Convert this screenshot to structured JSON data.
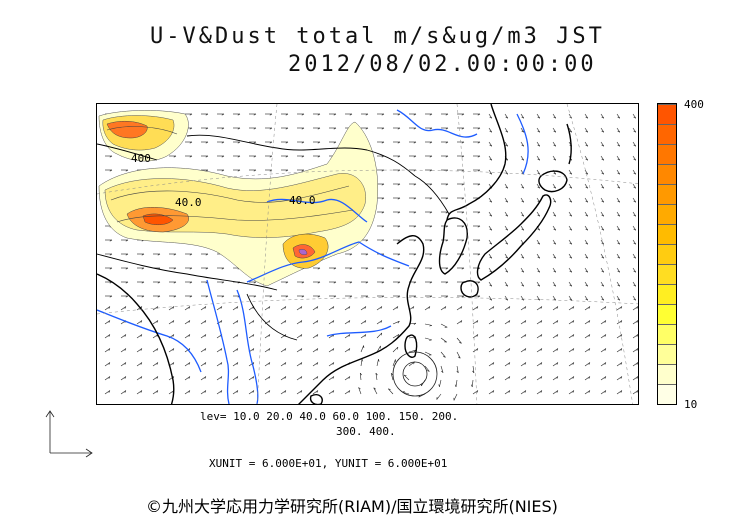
{
  "title": {
    "line1": "U-V&Dust total m/s&ug/m3 JST",
    "line2": "2012/08/02.00:00:00"
  },
  "contour_labels": [
    {
      "id": "label-a",
      "text": "400"
    },
    {
      "id": "label-b",
      "text": "40.0"
    },
    {
      "id": "label-c",
      "text": "40.0"
    }
  ],
  "colorbar": {
    "max_label": "400",
    "min_label": "10",
    "colors": [
      "#ffffe6",
      "#ffffcc",
      "#ffff99",
      "#ffff66",
      "#ffff33",
      "#ffee22",
      "#ffdd22",
      "#ffcc11",
      "#ffbb00",
      "#ffaa00",
      "#ff9900",
      "#ff8800",
      "#ff7700",
      "#ff6600",
      "#ff5500"
    ]
  },
  "levels": {
    "line1": "lev= 10.0 20.0 40.0 60.0 100. 150. 200.",
    "line2": "300. 400."
  },
  "units": {
    "text": "XUNIT = 6.000E+01, YUNIT = 6.000E+01"
  },
  "credit": {
    "text": "©九州大学応用力学研究所(RIAM)/国立環境研究所(NIES)"
  },
  "colors": {
    "coast": "#000000",
    "river": "#1e5cff",
    "vector": "#222222"
  }
}
